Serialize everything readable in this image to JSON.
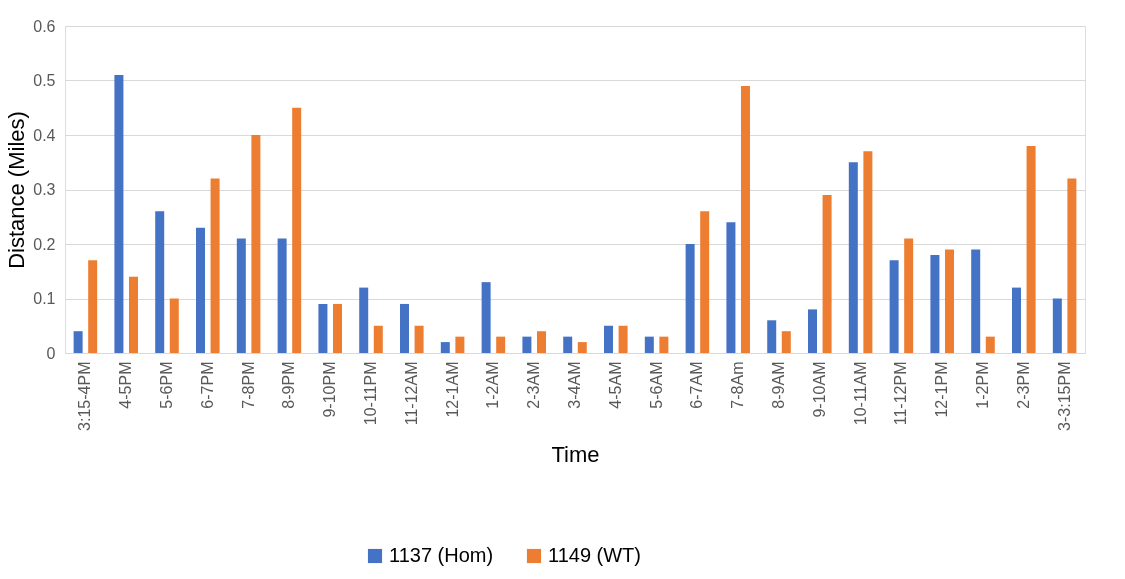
{
  "chart_data": {
    "type": "bar",
    "xlabel": "Time",
    "ylabel": "Distance (Miles)",
    "categories": [
      "3:15-4PM",
      "4-5PM",
      "5-6PM",
      "6-7PM",
      "7-8PM",
      "8-9PM",
      "9-10PM",
      "10-11PM",
      "11-12AM",
      "12-1AM",
      "1-2AM",
      "2-3AM",
      "3-4AM",
      "4-5AM",
      "5-6AM",
      "6-7AM",
      "7-8Am",
      "8-9AM",
      "9-10AM",
      "10-11AM",
      "11-12PM",
      "12-1PM",
      "1-2PM",
      "2-3PM",
      "3-3:15PM"
    ],
    "series": [
      {
        "name": "1137 (Hom)",
        "color": "#4472c4",
        "values": [
          0.04,
          0.51,
          0.26,
          0.23,
          0.21,
          0.21,
          0.09,
          0.12,
          0.09,
          0.02,
          0.13,
          0.03,
          0.03,
          0.05,
          0.03,
          0.2,
          0.24,
          0.06,
          0.08,
          0.35,
          0.17,
          0.18,
          0.19,
          0.12,
          0.1
        ]
      },
      {
        "name": "1149 (WT)",
        "color": "#ed7d31",
        "values": [
          0.17,
          0.14,
          0.1,
          0.32,
          0.4,
          0.45,
          0.09,
          0.05,
          0.05,
          0.03,
          0.03,
          0.04,
          0.02,
          0.05,
          0.03,
          0.26,
          0.49,
          0.04,
          0.29,
          0.37,
          0.21,
          0.19,
          0.03,
          0.38,
          0.32
        ]
      }
    ],
    "ylim": [
      0,
      0.6
    ],
    "yticks": [
      0,
      0.1,
      0.2,
      0.3,
      0.4,
      0.5,
      0.6
    ],
    "grid": "y",
    "legend": "bottom"
  }
}
